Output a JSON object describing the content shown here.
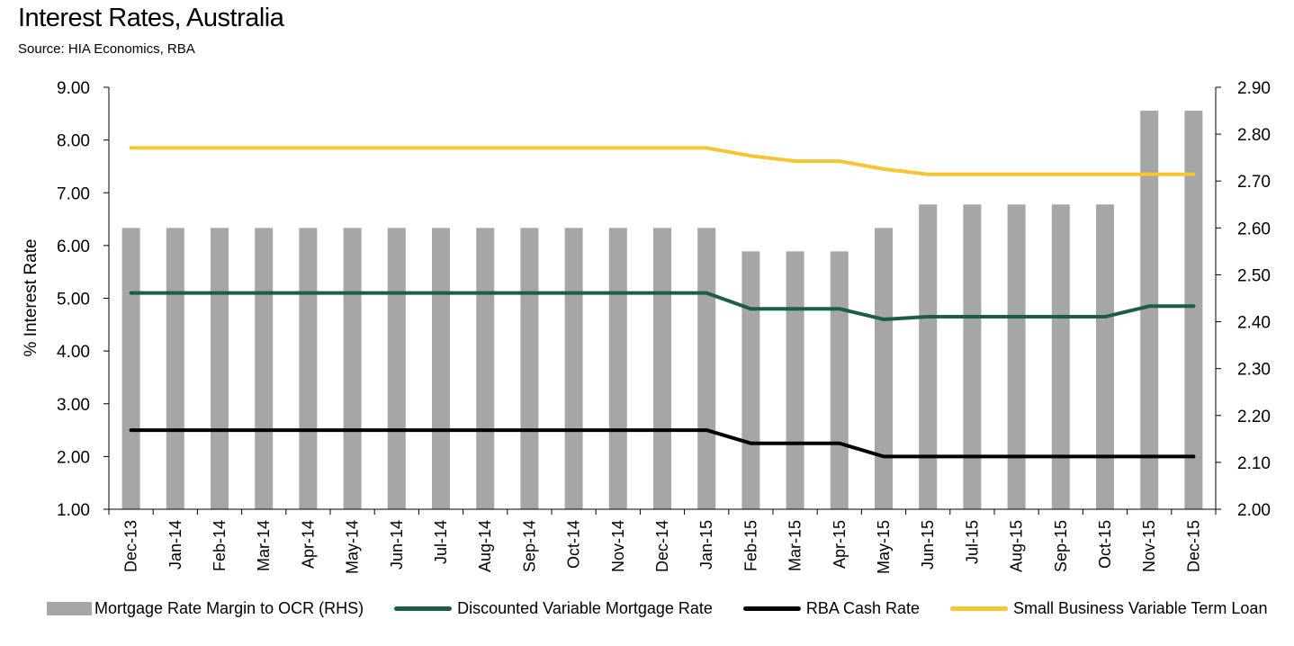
{
  "title": "Interest Rates, Australia",
  "subtitle": "Source: HIA Economics, RBA",
  "chart_data": {
    "type": "bar",
    "title": "Interest Rates, Australia",
    "subtitle": "Source: HIA Economics, RBA",
    "ylabel": "% Interest Rate",
    "ylim": [
      1.0,
      9.0
    ],
    "y_ticks": [
      "9.00",
      "8.00",
      "7.00",
      "6.00",
      "5.00",
      "4.00",
      "3.00",
      "2.00",
      "1.00"
    ],
    "y2lim": [
      2.0,
      2.9
    ],
    "y2_ticks": [
      "2.90",
      "2.80",
      "2.70",
      "2.60",
      "2.50",
      "2.40",
      "2.30",
      "2.20",
      "2.10",
      "2.00"
    ],
    "categories": [
      "Dec-13",
      "Jan-14",
      "Feb-14",
      "Mar-14",
      "Apr-14",
      "May-14",
      "Jun-14",
      "Jul-14",
      "Aug-14",
      "Sep-14",
      "Oct-14",
      "Nov-14",
      "Dec-14",
      "Jan-15",
      "Feb-15",
      "Mar-15",
      "Apr-15",
      "May-15",
      "Jun-15",
      "Jul-15",
      "Aug-15",
      "Sep-15",
      "Oct-15",
      "Nov-15",
      "Dec-15"
    ],
    "legend_position": "bottom",
    "grid": false,
    "series": [
      {
        "name": "Mortgage Rate Margin to OCR (RHS)",
        "type": "bar",
        "axis": "right",
        "color": "#a6a6a6",
        "values": [
          2.6,
          2.6,
          2.6,
          2.6,
          2.6,
          2.6,
          2.6,
          2.6,
          2.6,
          2.6,
          2.6,
          2.6,
          2.6,
          2.6,
          2.55,
          2.55,
          2.55,
          2.6,
          2.65,
          2.65,
          2.65,
          2.65,
          2.65,
          2.85,
          2.85
        ]
      },
      {
        "name": "Discounted Variable Mortgage Rate",
        "type": "line",
        "axis": "left",
        "color": "#1b5e46",
        "values": [
          5.1,
          5.1,
          5.1,
          5.1,
          5.1,
          5.1,
          5.1,
          5.1,
          5.1,
          5.1,
          5.1,
          5.1,
          5.1,
          5.1,
          4.8,
          4.8,
          4.8,
          4.6,
          4.65,
          4.65,
          4.65,
          4.65,
          4.65,
          4.85,
          4.85
        ]
      },
      {
        "name": "RBA Cash Rate",
        "type": "line",
        "axis": "left",
        "color": "#000000",
        "values": [
          2.5,
          2.5,
          2.5,
          2.5,
          2.5,
          2.5,
          2.5,
          2.5,
          2.5,
          2.5,
          2.5,
          2.5,
          2.5,
          2.5,
          2.25,
          2.25,
          2.25,
          2.0,
          2.0,
          2.0,
          2.0,
          2.0,
          2.0,
          2.0,
          2.0
        ]
      },
      {
        "name": "Small Business Variable Term Loan",
        "type": "line",
        "axis": "left",
        "color": "#f7c531",
        "values": [
          7.85,
          7.85,
          7.85,
          7.85,
          7.85,
          7.85,
          7.85,
          7.85,
          7.85,
          7.85,
          7.85,
          7.85,
          7.85,
          7.85,
          7.7,
          7.6,
          7.6,
          7.45,
          7.35,
          7.35,
          7.35,
          7.35,
          7.35,
          7.35,
          7.35
        ]
      }
    ]
  }
}
